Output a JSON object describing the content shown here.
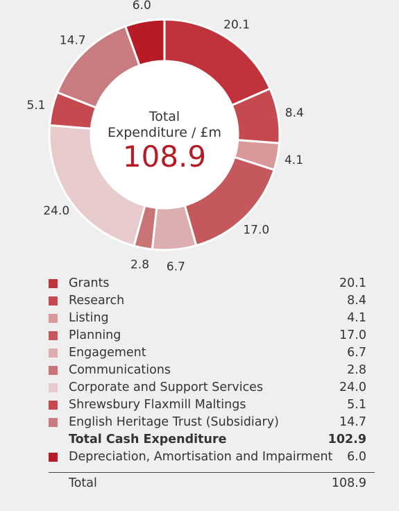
{
  "chart_data": {
    "type": "pie",
    "center_label_line1": "Total",
    "center_label_line2": "Expenditure / £m",
    "center_value": "108.9",
    "slices": [
      {
        "label": "Grants",
        "value": 20.1,
        "display": "20.1",
        "color": "#c0333c"
      },
      {
        "label": "Research",
        "value": 8.4,
        "display": "8.4",
        "color": "#c44a50"
      },
      {
        "label": "Listing",
        "value": 4.1,
        "display": "4.1",
        "color": "#d9989a"
      },
      {
        "label": "Planning",
        "value": 17.0,
        "display": "17.0",
        "color": "#c4585c"
      },
      {
        "label": "Engagement",
        "value": 6.7,
        "display": "6.7",
        "color": "#ddaeaf"
      },
      {
        "label": "Communications",
        "value": 2.8,
        "display": "2.8",
        "color": "#c97476"
      },
      {
        "label": "Corporate and Support Services",
        "value": 24.0,
        "display": "24.0",
        "color": "#e8cbcc"
      },
      {
        "label": "Shrewsbury Flaxmill Maltings",
        "value": 5.1,
        "display": "5.1",
        "color": "#c44a50"
      },
      {
        "label": "English Heritage Trust (Subsidiary)",
        "value": 14.7,
        "display": "14.7",
        "color": "#c97c7f"
      },
      {
        "label": "Depreciation, Amortisation and Impairment",
        "value": 6.0,
        "display": "6.0",
        "color": "#b71c26"
      }
    ],
    "subtotal": {
      "label": "Total Cash Expenditure",
      "value": "102.9"
    },
    "total": {
      "label": "Total",
      "value": "108.9"
    }
  }
}
